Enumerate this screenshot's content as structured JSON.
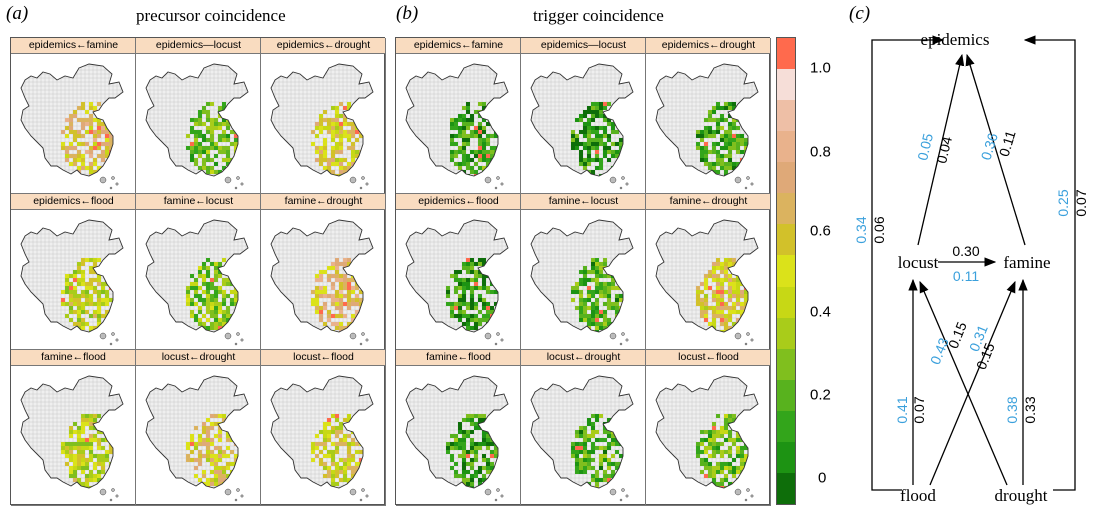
{
  "panel_a": {
    "label": "(a)",
    "title": "precursor coincidence",
    "facets": [
      "epidemics←famine",
      "epidemics—locust",
      "epidemics←drought",
      "epidemics←flood",
      "famine←locust",
      "famine←drought",
      "famine←flood",
      "locust←drought",
      "locust←flood"
    ]
  },
  "panel_b": {
    "label": "(b)",
    "title": "trigger coincidence",
    "facets": [
      "epidemics←famine",
      "epidemics—locust",
      "epidemics←drought",
      "epidemics←flood",
      "famine←locust",
      "famine←drought",
      "famine←flood",
      "locust←drought",
      "locust←flood"
    ]
  },
  "colorbar": {
    "ticks": [
      "1.0",
      "0.8",
      "0.6",
      "0.4",
      "0.2",
      "0"
    ],
    "colors": [
      "#ff6a4d",
      "#f6ded8",
      "#eebfa6",
      "#e9b28c",
      "#dfa978",
      "#dbb35f",
      "#d2c12a",
      "#dbe21a",
      "#c7d815",
      "#a9cc1a",
      "#80bf1e",
      "#58b21e",
      "#33a51b",
      "#1d9313",
      "#0e6e0a"
    ]
  },
  "panel_c": {
    "label": "(c)",
    "nodes": {
      "epidemics": "epidemics",
      "locust": "locust",
      "famine": "famine",
      "flood": "flood",
      "drought": "drought"
    },
    "blue_color": "#3aa0dc",
    "edges": {
      "left_outer": {
        "blue": "0.34",
        "black": "0.06"
      },
      "right_outer": {
        "blue": "0.25",
        "black": "0.07"
      },
      "locust_epidemics": {
        "blue": "0.05",
        "black": "0.04"
      },
      "famine_epidemics": {
        "blue": "0.36",
        "black": "0.11"
      },
      "locust_famine": {
        "black": "0.30",
        "blue": "0.11"
      },
      "flood_locust": {
        "blue": "0.41",
        "black": "0.07"
      },
      "drought_locust": {
        "blue": "0.43",
        "black": "0.15"
      },
      "flood_famine": {
        "blue": "0.31",
        "black": "0.15"
      },
      "drought_famine": {
        "blue": "0.38",
        "black": "0.33"
      }
    }
  }
}
